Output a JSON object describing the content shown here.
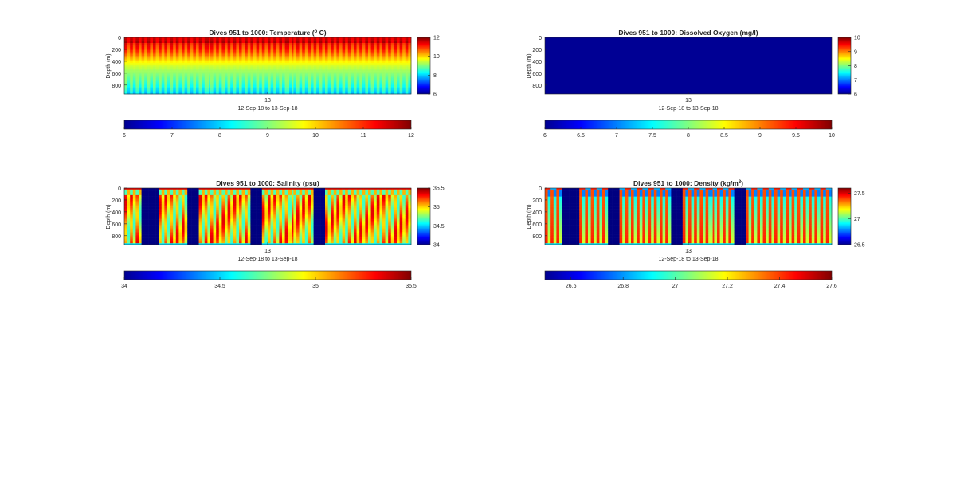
{
  "figure": {
    "background": "#ffffff",
    "colormap": "jet"
  },
  "chart_data": [
    {
      "type": "heatmap",
      "title": "Dives 951 to 1000: Temperature (",
      "title_sup": "o",
      "title_after": " C)",
      "xlabel": "12-Sep-18 to 13-Sep-18",
      "xtick_label": "13",
      "ylabel": "Depth (m)",
      "yticks": [
        "0",
        "200",
        "400",
        "600",
        "800"
      ],
      "ylim": [
        0,
        950
      ],
      "clim": [
        6,
        12
      ],
      "side_colorbar_ticks": [
        "12",
        "10",
        "8",
        "6"
      ],
      "bottom_colorbar_ticks": [
        "6",
        "7",
        "8",
        "9",
        "10",
        "11",
        "12"
      ],
      "side_ticks": [
        12,
        10,
        8,
        6
      ],
      "bottom_ticks": [
        6,
        7,
        8,
        9,
        10,
        11,
        12
      ],
      "pattern": "temperature",
      "dives": 50
    },
    {
      "type": "heatmap",
      "title": "Dives 951 to 1000: Dissolved Oxygen (mg/l)",
      "title_sup": "",
      "title_after": "",
      "xlabel": "12-Sep-18 to 13-Sep-18",
      "xtick_label": "13",
      "ylabel": "Depth (m)",
      "yticks": [
        "0",
        "200",
        "400",
        "600",
        "800"
      ],
      "ylim": [
        0,
        950
      ],
      "clim": [
        6,
        10
      ],
      "side_colorbar_ticks": [
        "10",
        "9",
        "8",
        "7",
        "6"
      ],
      "bottom_colorbar_ticks": [
        "6",
        "6.5",
        "7",
        "7.5",
        "8",
        "8.5",
        "9",
        "9.5",
        "10"
      ],
      "side_ticks": [
        10,
        9,
        8,
        7,
        6
      ],
      "bottom_ticks": [
        6,
        6.5,
        7,
        7.5,
        8,
        8.5,
        9,
        9.5,
        10
      ],
      "pattern": "oxygen",
      "dives": 50
    },
    {
      "type": "heatmap",
      "title": "Dives 951 to 1000: Salinity (psu)",
      "title_sup": "",
      "title_after": "",
      "xlabel": "12-Sep-18 to 13-Sep-18",
      "xtick_label": "13",
      "ylabel": "Depth (m)",
      "yticks": [
        "0",
        "200",
        "400",
        "600",
        "800"
      ],
      "ylim": [
        0,
        950
      ],
      "clim": [
        34,
        35.5
      ],
      "side_colorbar_ticks": [
        "35.5",
        "35",
        "34.5",
        "34"
      ],
      "bottom_colorbar_ticks": [
        "34",
        "34.5",
        "35",
        "35.5"
      ],
      "side_ticks": [
        35.5,
        35,
        34.5,
        34
      ],
      "bottom_ticks": [
        34,
        34.5,
        35,
        35.5
      ],
      "pattern": "salinity",
      "dives": 50,
      "gaps": [
        [
          3,
          5
        ],
        [
          11,
          12
        ],
        [
          22,
          23
        ],
        [
          33,
          34
        ]
      ]
    },
    {
      "type": "heatmap",
      "title": "Dives 951 to 1000: Density (kg/m",
      "title_sup": "3",
      "title_after": ")",
      "xlabel": "12-Sep-18 to 13-Sep-18",
      "xtick_label": "13",
      "ylabel": "Depth (m)",
      "yticks": [
        "0",
        "200",
        "400",
        "600",
        "800"
      ],
      "ylim": [
        0,
        950
      ],
      "clim": [
        26.5,
        27.6
      ],
      "side_colorbar_ticks": [
        "27.5",
        "27",
        "26.5"
      ],
      "bottom_colorbar_ticks": [
        "26.6",
        "26.8",
        "27",
        "27.2",
        "27.4",
        "27.6"
      ],
      "side_ticks": [
        27.5,
        27,
        26.5
      ],
      "bottom_ticks": [
        26.6,
        26.8,
        27,
        27.2,
        27.4,
        27.6
      ],
      "pattern": "density",
      "dives": 50,
      "gaps": [
        [
          3,
          5
        ],
        [
          11,
          12
        ],
        [
          22,
          23
        ],
        [
          33,
          34
        ]
      ]
    }
  ]
}
